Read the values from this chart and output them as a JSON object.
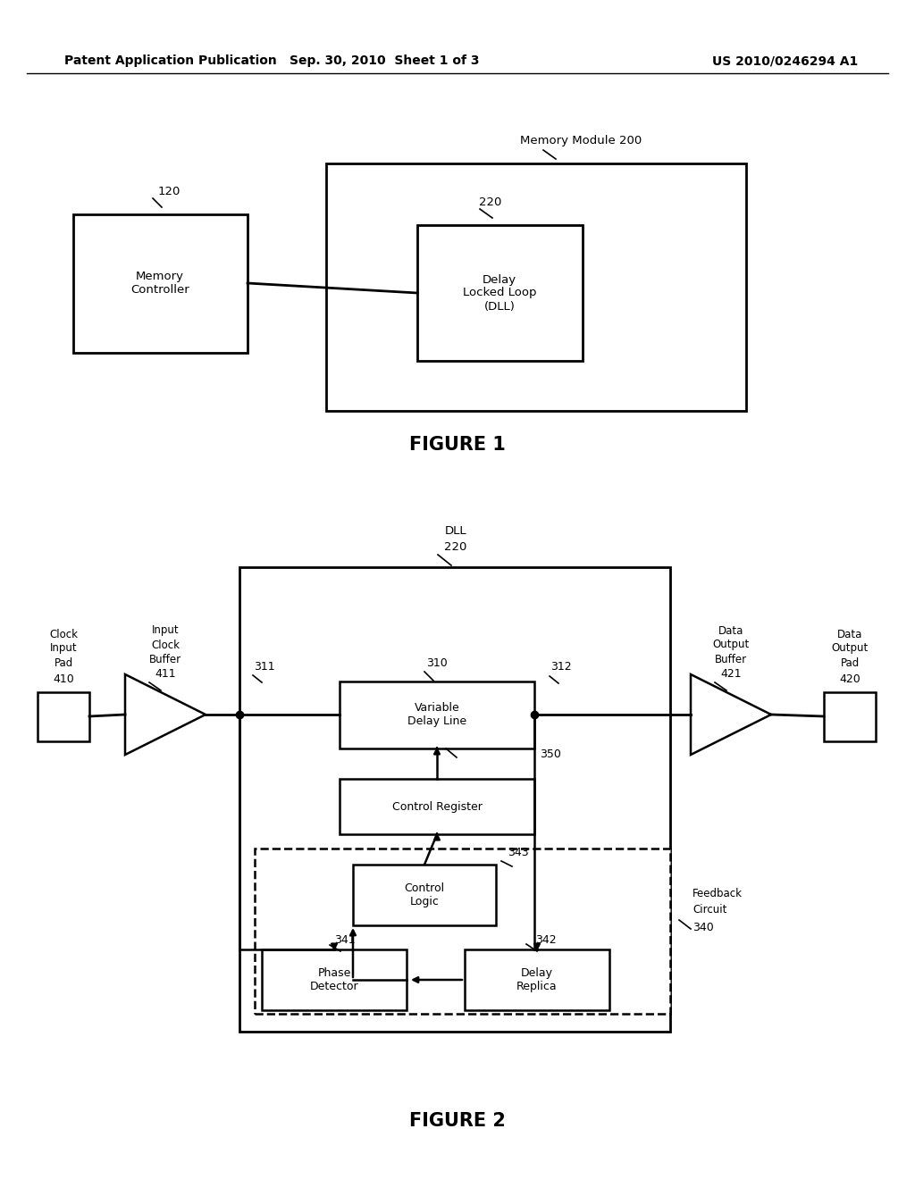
{
  "bg_color": "#ffffff",
  "header_left": "Patent Application Publication",
  "header_center": "Sep. 30, 2010  Sheet 1 of 3",
  "header_right": "US 2010/0246294 A1",
  "fig1_title": "FIGURE 1",
  "fig2_title": "FIGURE 2"
}
